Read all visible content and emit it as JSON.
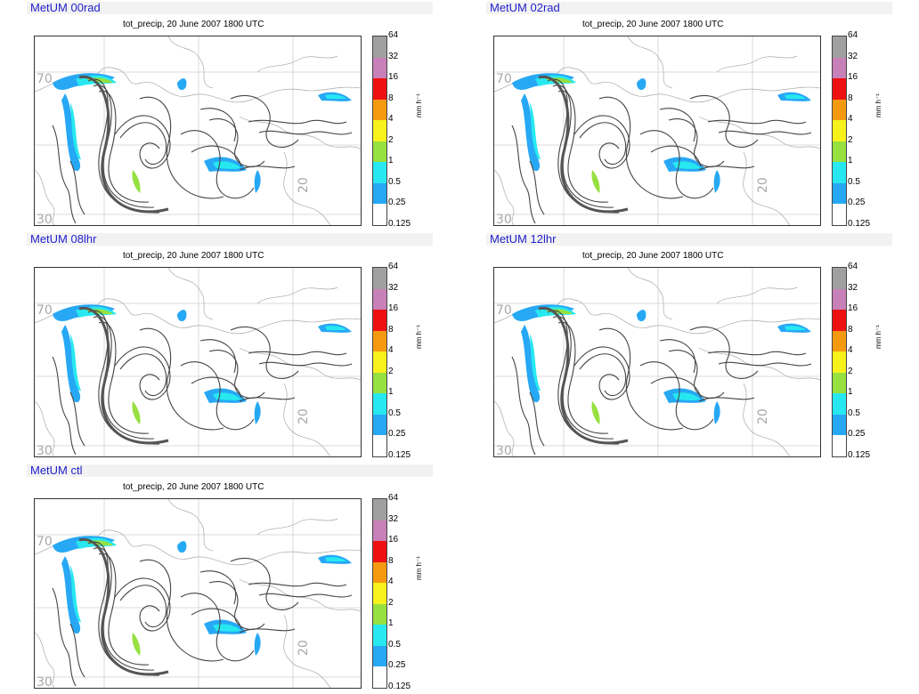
{
  "figure": {
    "subtitle": "tot_precip, 20 June 2007 1800 UTC",
    "colorbar": {
      "unit_label": "mm h⁻¹",
      "ticks": [
        "64",
        "32",
        "16",
        "8",
        "4",
        "2",
        "1",
        "0.5",
        "0.25",
        "0.125"
      ],
      "colors": [
        "#a0a0a0",
        "#c880b8",
        "#ee1111",
        "#f59a10",
        "#f7f21c",
        "#96e040",
        "#27e8f0",
        "#27a8f5",
        "#ffffff"
      ]
    },
    "map_labels": {
      "lat_70": "70",
      "lat_30": "30",
      "lon_20": "20"
    },
    "panels": [
      {
        "id": "00rad",
        "title": "MetUM 00rad"
      },
      {
        "id": "02rad",
        "title": "MetUM 02rad"
      },
      {
        "id": "08lhr",
        "title": "MetUM 08lhr"
      },
      {
        "id": "12lhr",
        "title": "MetUM 12lhr"
      },
      {
        "id": "ctl",
        "title": "MetUM ctl"
      }
    ]
  }
}
